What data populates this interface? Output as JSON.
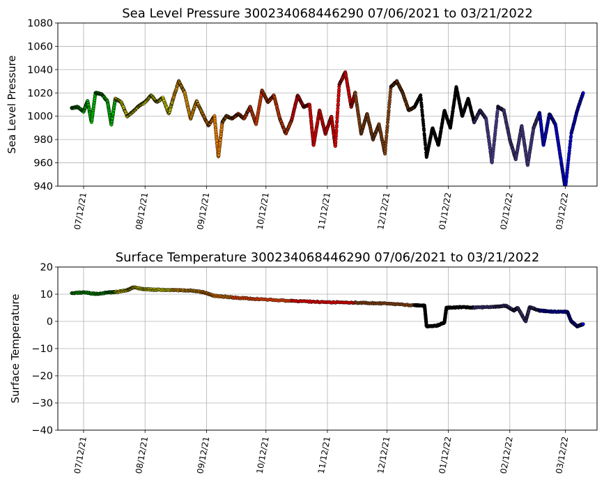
{
  "chart_data": [
    {
      "type": "scatter",
      "title": "Sea Level Pressure 300234068446290  07/06/2021 to 03/21/2022",
      "xlabel": "",
      "ylabel": "Sea Level Pressure",
      "ylim": [
        940,
        1080
      ],
      "yticks": [
        940,
        960,
        980,
        1000,
        1020,
        1040,
        1060,
        1080
      ],
      "xlim": [
        "2021-06-29",
        "2022-03-28"
      ],
      "xticks": [
        "2021-07-12",
        "2021-08-12",
        "2021-09-12",
        "2021-10-12",
        "2021-11-12",
        "2021-12-12",
        "2022-01-12",
        "2022-02-12",
        "2022-03-12"
      ],
      "xtick_labels": [
        "07/12/21",
        "08/12/21",
        "09/12/21",
        "10/12/21",
        "11/12/21",
        "12/12/21",
        "01/12/22",
        "02/12/22",
        "03/12/22"
      ],
      "grid": true,
      "series": [
        {
          "color": "#00dd00",
          "x": [
            "2021-07-06",
            "2021-07-09",
            "2021-07-12",
            "2021-07-14",
            "2021-07-16",
            "2021-07-18",
            "2021-07-21",
            "2021-07-24",
            "2021-07-26",
            "2021-07-28"
          ],
          "y": [
            1007,
            1008,
            1004,
            1013,
            995,
            1020,
            1019,
            1013,
            993,
            1015
          ]
        },
        {
          "color": "#ffff00",
          "x": [
            "2021-07-28",
            "2021-07-31",
            "2021-08-03",
            "2021-08-06",
            "2021-08-09",
            "2021-08-12",
            "2021-08-15",
            "2021-08-18",
            "2021-08-21",
            "2021-08-24",
            "2021-08-26"
          ],
          "y": [
            1015,
            1012,
            1000,
            1004,
            1009,
            1012,
            1018,
            1012,
            1016,
            1002,
            1014
          ]
        },
        {
          "color": "#ffaa00",
          "x": [
            "2021-08-26",
            "2021-08-29",
            "2021-09-01",
            "2021-09-04",
            "2021-09-07",
            "2021-09-10"
          ],
          "y": [
            1014,
            1030,
            1020,
            998,
            1013,
            1002
          ]
        },
        {
          "color": "#ff8800",
          "x": [
            "2021-09-10",
            "2021-09-13",
            "2021-09-16",
            "2021-09-18",
            "2021-09-20",
            "2021-09-22",
            "2021-09-25"
          ],
          "y": [
            1002,
            992,
            1000,
            965,
            995,
            1000,
            998
          ]
        },
        {
          "color": "#ee4400",
          "x": [
            "2021-09-25",
            "2021-09-28",
            "2021-10-01",
            "2021-10-04",
            "2021-10-07",
            "2021-10-10",
            "2021-10-13",
            "2021-10-16",
            "2021-10-19",
            "2021-10-22",
            "2021-10-25"
          ],
          "y": [
            998,
            1002,
            998,
            1008,
            993,
            1022,
            1012,
            1018,
            998,
            985,
            997
          ]
        },
        {
          "color": "#ee0000",
          "x": [
            "2021-10-25",
            "2021-10-28",
            "2021-10-31",
            "2021-11-03",
            "2021-11-05",
            "2021-11-08",
            "2021-11-11",
            "2021-11-14",
            "2021-11-16",
            "2021-11-18",
            "2021-11-21",
            "2021-11-24",
            "2021-11-26"
          ],
          "y": [
            997,
            1018,
            1008,
            1010,
            975,
            1005,
            985,
            1000,
            974,
            1027,
            1038,
            1008,
            1020
          ]
        },
        {
          "color": "#8b4513",
          "x": [
            "2021-11-26",
            "2021-11-29",
            "2021-12-02",
            "2021-12-05",
            "2021-12-08",
            "2021-12-11",
            "2021-12-14",
            "2021-12-17",
            "2021-12-20",
            "2021-12-23",
            "2021-12-26"
          ],
          "y": [
            1020,
            985,
            1002,
            980,
            993,
            968,
            1025,
            1030,
            1020,
            1005,
            1008
          ]
        },
        {
          "color": "#000000",
          "x": [
            "2021-12-26",
            "2021-12-29",
            "2022-01-01",
            "2022-01-04",
            "2022-01-07",
            "2022-01-10",
            "2022-01-13",
            "2022-01-16",
            "2022-01-19",
            "2022-01-22",
            "2022-01-25"
          ],
          "y": [
            1008,
            1018,
            965,
            990,
            975,
            1005,
            990,
            1025,
            1000,
            1015,
            995
          ]
        },
        {
          "color": "#483d8b",
          "x": [
            "2022-01-25",
            "2022-01-28",
            "2022-01-31",
            "2022-02-03",
            "2022-02-06",
            "2022-02-09",
            "2022-02-12",
            "2022-02-15",
            "2022-02-18",
            "2022-02-21",
            "2022-02-24",
            "2022-02-27"
          ],
          "y": [
            995,
            1005,
            998,
            960,
            1008,
            1005,
            980,
            963,
            992,
            958,
            990,
            1003
          ]
        },
        {
          "color": "#0000dd",
          "x": [
            "2022-02-27",
            "2022-03-01",
            "2022-03-04",
            "2022-03-07",
            "2022-03-10",
            "2022-03-12",
            "2022-03-15",
            "2022-03-18",
            "2022-03-21"
          ],
          "y": [
            1003,
            975,
            1002,
            993,
            960,
            938,
            985,
            1005,
            1020
          ]
        }
      ]
    },
    {
      "type": "scatter",
      "title": "Surface Temperature 300234068446290  07/06/2021 to 03/21/2022",
      "xlabel": "",
      "ylabel": "Surface Temperature",
      "ylim": [
        -40,
        20
      ],
      "yticks": [
        -40,
        -30,
        -20,
        -10,
        0,
        10,
        20
      ],
      "ytick_labels": [
        "−40",
        "−30",
        "−20",
        "−10",
        "0",
        "10",
        "20"
      ],
      "xlim": [
        "2021-06-29",
        "2022-03-28"
      ],
      "xticks": [
        "2021-07-12",
        "2021-08-12",
        "2021-09-12",
        "2021-10-12",
        "2021-11-12",
        "2021-12-12",
        "2022-01-12",
        "2022-02-12",
        "2022-03-12"
      ],
      "xtick_labels": [
        "07/12/21",
        "08/12/21",
        "09/12/21",
        "10/12/21",
        "11/12/21",
        "12/12/21",
        "01/12/22",
        "02/12/22",
        "03/12/22"
      ],
      "grid": true,
      "series": [
        {
          "color": "#00dd00",
          "x": [
            "2021-07-06",
            "2021-07-12",
            "2021-07-18",
            "2021-07-24",
            "2021-07-28"
          ],
          "y": [
            10.3,
            10.7,
            10.1,
            10.6,
            10.8
          ]
        },
        {
          "color": "#ffff00",
          "x": [
            "2021-07-28",
            "2021-08-03",
            "2021-08-06",
            "2021-08-12",
            "2021-08-18",
            "2021-08-26"
          ],
          "y": [
            10.8,
            11.5,
            12.5,
            11.8,
            11.6,
            11.5
          ]
        },
        {
          "color": "#ffaa00",
          "x": [
            "2021-08-26",
            "2021-09-03",
            "2021-09-10"
          ],
          "y": [
            11.5,
            11.4,
            10.8
          ]
        },
        {
          "color": "#ff8800",
          "x": [
            "2021-09-10",
            "2021-09-16",
            "2021-09-25"
          ],
          "y": [
            10.8,
            9.4,
            8.8
          ]
        },
        {
          "color": "#ee4400",
          "x": [
            "2021-09-25",
            "2021-10-08",
            "2021-10-25"
          ],
          "y": [
            8.8,
            8.2,
            7.5
          ]
        },
        {
          "color": "#ee0000",
          "x": [
            "2021-10-25",
            "2021-11-10",
            "2021-11-26"
          ],
          "y": [
            7.5,
            7.1,
            6.9
          ]
        },
        {
          "color": "#8b4513",
          "x": [
            "2021-11-26",
            "2021-12-10",
            "2021-12-26"
          ],
          "y": [
            6.9,
            6.6,
            5.9
          ]
        },
        {
          "color": "#000000",
          "x": [
            "2021-12-26",
            "2021-12-31",
            "2022-01-01",
            "2022-01-06",
            "2022-01-10",
            "2022-01-11",
            "2022-01-18",
            "2022-01-25"
          ],
          "y": [
            5.9,
            5.8,
            -1.8,
            -1.6,
            -0.5,
            5.0,
            5.2,
            5.1
          ]
        },
        {
          "color": "#483d8b",
          "x": [
            "2022-01-25",
            "2022-02-04",
            "2022-02-10",
            "2022-02-14",
            "2022-02-16",
            "2022-02-20",
            "2022-02-22",
            "2022-02-27"
          ],
          "y": [
            5.1,
            5.3,
            5.8,
            4.0,
            5.0,
            0.0,
            5.2,
            4.0
          ]
        },
        {
          "color": "#0000dd",
          "x": [
            "2022-02-27",
            "2022-03-05",
            "2022-03-13",
            "2022-03-15",
            "2022-03-18",
            "2022-03-21"
          ],
          "y": [
            4.0,
            3.6,
            3.5,
            0.0,
            -1.8,
            -1.0
          ]
        }
      ]
    }
  ]
}
